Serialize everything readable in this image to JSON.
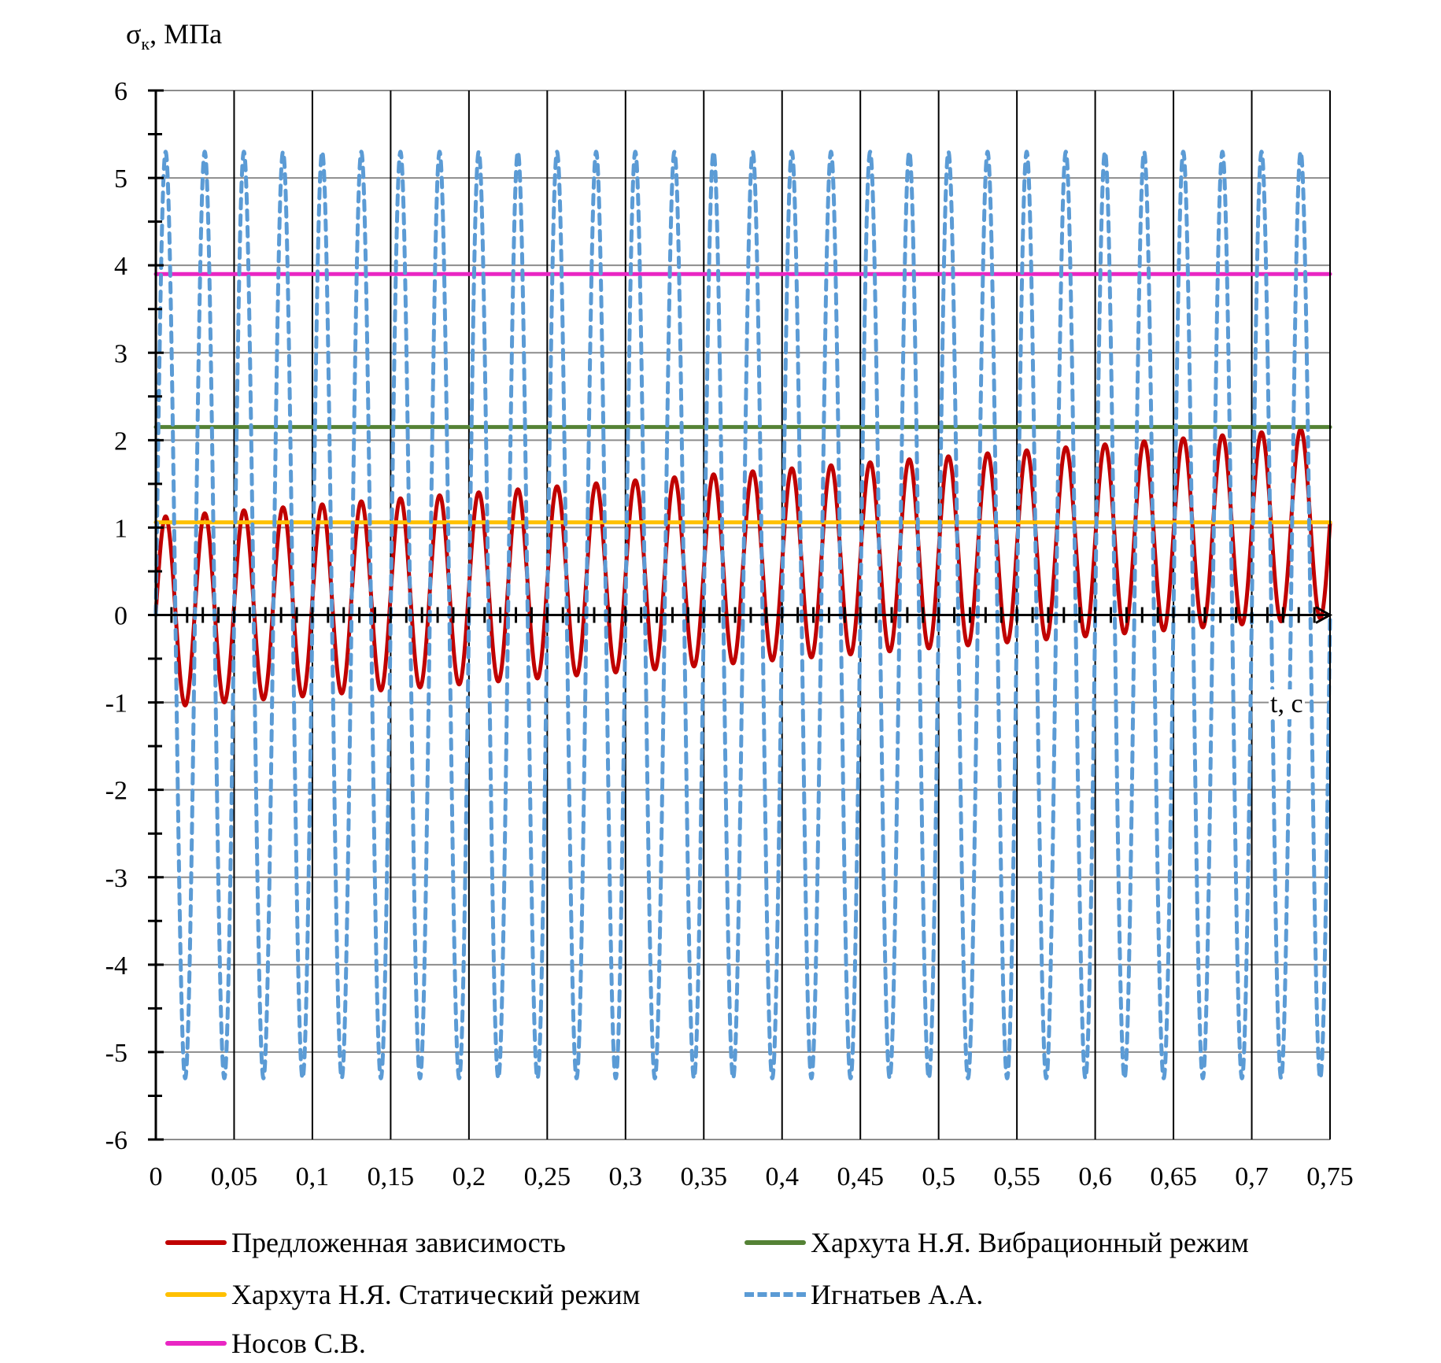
{
  "chart_data": {
    "type": "line",
    "title": "",
    "ylabel": {
      "symbol": "σ",
      "subscript": "к",
      "suffix": ",  МПа"
    },
    "xlabel": "t, c",
    "xlim": [
      0,
      0.75
    ],
    "ylim": [
      -6,
      6
    ],
    "grid": true,
    "legend_position": "bottom",
    "x_ticks": [
      "0",
      "0,05",
      "0,1",
      "0,15",
      "0,2",
      "0,25",
      "0,3",
      "0,35",
      "0,4",
      "0,45",
      "0,5",
      "0,55",
      "0,6",
      "0,65",
      "0,7",
      "0,75"
    ],
    "x_tick_values": [
      0,
      0.05,
      0.1,
      0.15,
      0.2,
      0.25,
      0.3,
      0.35,
      0.4,
      0.45,
      0.5,
      0.55,
      0.6,
      0.65,
      0.7,
      0.75
    ],
    "y_ticks": [
      "6",
      "5",
      "4",
      "3",
      "2",
      "1",
      "0",
      "-1",
      "-2",
      "-3",
      "-4",
      "-5",
      "-6"
    ],
    "y_tick_values": [
      6,
      5,
      4,
      3,
      2,
      1,
      0,
      -1,
      -2,
      -3,
      -4,
      -5,
      -6
    ],
    "series": [
      {
        "name": "Предложенная зависимость",
        "color": "#c00000",
        "style": "solid",
        "kind": "oscillation",
        "period": 0.025,
        "amplitude": 1.09,
        "offset_start": 0.03,
        "offset_end": 1.06,
        "peak_start": 1.12,
        "peak_end": 2.15,
        "trough_start": -1.06,
        "trough_end": -0.05
      },
      {
        "name": "Хархута Н.Я. Вибрационный режим",
        "color": "#548235",
        "style": "solid",
        "kind": "constant",
        "value": 2.15
      },
      {
        "name": "Хархута Н.Я. Статический режим",
        "color": "#ffc000",
        "style": "solid",
        "kind": "constant",
        "value": 1.06
      },
      {
        "name": "Игнатьев А.А.",
        "color": "#5b9bd5",
        "style": "dashed",
        "kind": "oscillation",
        "period": 0.025,
        "amplitude": 5.3,
        "offset_start": 0,
        "offset_end": 0
      },
      {
        "name": "Носов С.В.",
        "color": "#e926c3",
        "style": "solid",
        "kind": "constant",
        "value": 3.9
      }
    ]
  },
  "legend_order": [
    0,
    1,
    2,
    3,
    4
  ]
}
